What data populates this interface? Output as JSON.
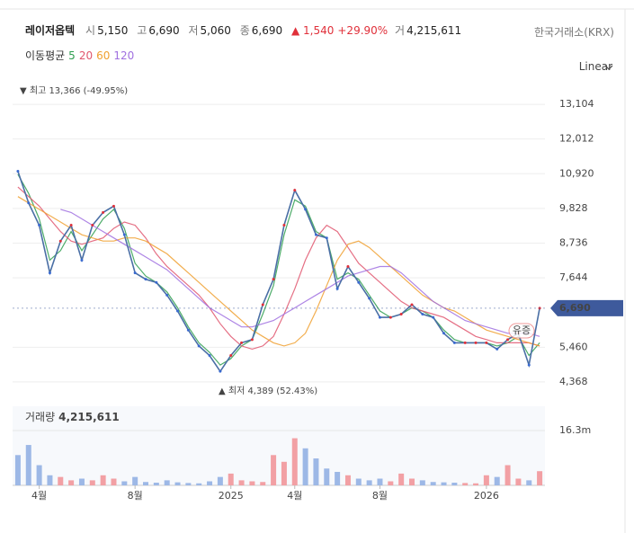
{
  "header": {
    "name": "레이저옵텍",
    "open_label": "시",
    "open": "5,150",
    "high_label": "고",
    "high": "6,690",
    "low_label": "저",
    "low": "5,060",
    "close_label": "종",
    "close": "6,690",
    "change": "▲ 1,540",
    "change_pct": "+29.90%",
    "volume_label": "거",
    "volume": "4,215,611",
    "exchange": "한국거래소(KRX)",
    "ma_label": "이동평균",
    "scale": "Linear"
  },
  "chart_data": {
    "type": "line",
    "color": "#4a6fa5",
    "categories": [
      null,
      null,
      "4월",
      null,
      null,
      null,
      null,
      null,
      null,
      null,
      null,
      "8월",
      null,
      null,
      null,
      null,
      null,
      null,
      null,
      null,
      "2025",
      null,
      null,
      null,
      null,
      null,
      "4월",
      null,
      null,
      null,
      null,
      null,
      null,
      null,
      "8월",
      null,
      null,
      null,
      null,
      null,
      null,
      null,
      null,
      null,
      "2026",
      null,
      null,
      null,
      null,
      null
    ],
    "values": [
      11000,
      10000,
      9300,
      7800,
      8800,
      9300,
      8200,
      9300,
      9700,
      9900,
      9000,
      7800,
      7600,
      7500,
      7100,
      6600,
      6000,
      5500,
      5200,
      4700,
      5200,
      5600,
      5700,
      6800,
      7600,
      9300,
      10400,
      9800,
      9000,
      8900,
      7300,
      8000,
      7500,
      7000,
      6400,
      6400,
      6500,
      6800,
      6500,
      6400,
      5900,
      5600,
      5600,
      5600,
      5600,
      5400,
      5700,
      5900,
      4900,
      6690
    ],
    "ma_series": [
      {
        "name": "5",
        "color": "#2e9e4f",
        "values": [
          10900,
          10300,
          9500,
          8200,
          8500,
          9100,
          8500,
          9000,
          9500,
          9800,
          9200,
          8100,
          7700,
          7500,
          7200,
          6700,
          6100,
          5600,
          5300,
          4900,
          5100,
          5500,
          5700,
          6500,
          7400,
          9000,
          10100,
          9900,
          9100,
          8900,
          7600,
          7800,
          7600,
          7100,
          6600,
          6400,
          6500,
          6700,
          6600,
          6400,
          6000,
          5700,
          5600,
          5600,
          5600,
          5500,
          5600,
          5800,
          5200,
          5600
        ]
      },
      {
        "name": "20",
        "color": "#e0566e",
        "values": [
          10500,
          10200,
          9900,
          9500,
          9100,
          8800,
          8700,
          8800,
          8900,
          9200,
          9400,
          9300,
          8900,
          8400,
          8000,
          7700,
          7400,
          7100,
          6700,
          6200,
          5800,
          5500,
          5400,
          5500,
          5800,
          6500,
          7300,
          8200,
          8900,
          9300,
          9100,
          8600,
          8100,
          7800,
          7500,
          7200,
          6900,
          6700,
          6600,
          6500,
          6400,
          6200,
          6000,
          5800,
          5700,
          5600,
          5600,
          5600,
          5600,
          5500
        ]
      },
      {
        "name": "60",
        "color": "#f0a030",
        "values": [
          10200,
          10000,
          9800,
          9600,
          9400,
          9200,
          9000,
          8900,
          8800,
          8800,
          8900,
          8900,
          8800,
          8600,
          8400,
          8100,
          7800,
          7500,
          7200,
          6900,
          6600,
          6300,
          6000,
          5800,
          5600,
          5500,
          5600,
          5900,
          6600,
          7400,
          8200,
          8700,
          8800,
          8600,
          8300,
          8000,
          7700,
          7400,
          7100,
          6900,
          6700,
          6600,
          6400,
          6200,
          6000,
          5900,
          5800,
          5700,
          5600,
          5500
        ]
      },
      {
        "name": "120",
        "color": "#a070e0",
        "values": [
          null,
          null,
          null,
          null,
          9800,
          9700,
          9500,
          9300,
          9100,
          8900,
          8700,
          8500,
          8300,
          8100,
          7900,
          7600,
          7300,
          7000,
          6700,
          6500,
          6300,
          6100,
          6100,
          6200,
          6300,
          6500,
          6700,
          6900,
          7100,
          7300,
          7500,
          7700,
          7800,
          7900,
          8000,
          8000,
          7800,
          7500,
          7200,
          6900,
          6700,
          6500,
          6300,
          6200,
          6100,
          6000,
          5900,
          5900,
          5900,
          5800
        ]
      }
    ],
    "ylim": [
      3800,
      13700
    ],
    "yticks": [
      {
        "value": 13104,
        "label": "13,104"
      },
      {
        "value": 12012,
        "label": "12,012"
      },
      {
        "value": 10920,
        "label": "10,920"
      },
      {
        "value": 9828,
        "label": "9,828"
      },
      {
        "value": 8736,
        "label": "8,736"
      },
      {
        "value": 7644,
        "label": "7,644"
      },
      {
        "value": 5460,
        "label": "5,460"
      },
      {
        "value": 4368,
        "label": "4,368"
      }
    ],
    "grid": true,
    "current_price": {
      "value": 6690,
      "label": "6,690"
    },
    "max_label": "▼ 최고 13,366 (-49.95%)",
    "min_label": "▲ 최저 4,389 (52.43%)",
    "badge": "유증",
    "volume": {
      "label": "거래량",
      "last": "4,215,611",
      "up_color": "#f2a0a4",
      "down_color": "#9db8e6",
      "values": [
        9000000,
        12000000,
        6000000,
        3000000,
        2500000,
        1500000,
        2000000,
        1500000,
        3000000,
        2000000,
        1200000,
        2500000,
        1000000,
        800000,
        1500000,
        900000,
        700000,
        600000,
        1200000,
        2500000,
        3500000,
        1500000,
        1200000,
        1000000,
        9000000,
        7000000,
        14000000,
        11000000,
        8000000,
        5000000,
        4000000,
        3000000,
        2000000,
        1500000,
        2000000,
        1200000,
        3500000,
        2000000,
        1500000,
        1000000,
        900000,
        800000,
        700000,
        600000,
        3000000,
        2500000,
        6000000,
        2000000,
        1500000,
        4215611
      ],
      "ylim": [
        0,
        23500000
      ],
      "yticks": [
        {
          "value": 16300000,
          "label": "16.3m"
        }
      ]
    }
  }
}
